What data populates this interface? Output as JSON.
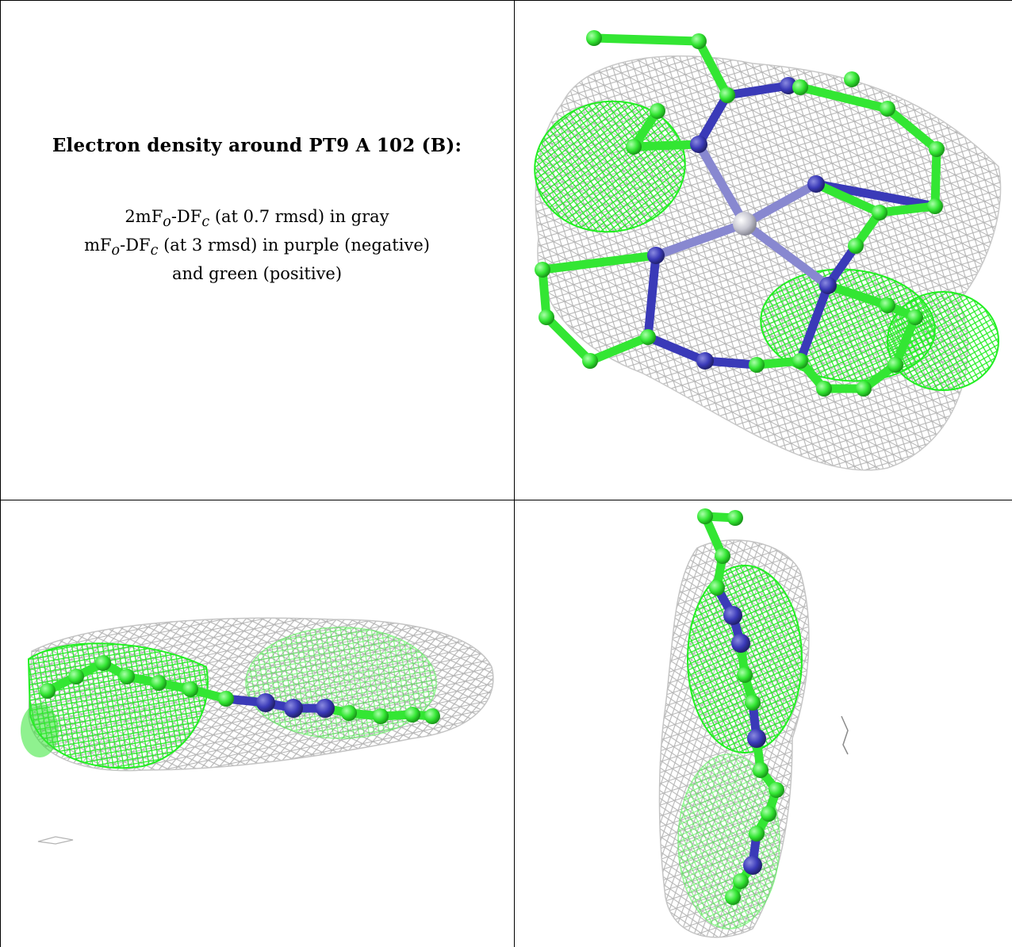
{
  "caption": {
    "title": "Electron density around PT9 A 102 (B):",
    "line1_parts": [
      "2mF",
      "o",
      "-DF",
      "c",
      " (at 0.7 rmsd) in gray"
    ],
    "line2_parts": [
      "mF",
      "o",
      "-DF",
      "c",
      " (at 3 rmsd) in purple (negative)"
    ],
    "line3": "and green (positive)"
  },
  "colors": {
    "mesh_gray": "#b4b4b4",
    "mesh_green": "#22ee22",
    "atom_carbon": "#33e633",
    "atom_nitrogen": "#3a3ab8",
    "atom_metal": "#c8c8d2",
    "border": "#000000"
  },
  "panels": {
    "top_right": "view-face-on",
    "bottom_left": "view-edge-horizontal",
    "bottom_right": "view-edge-vertical"
  }
}
